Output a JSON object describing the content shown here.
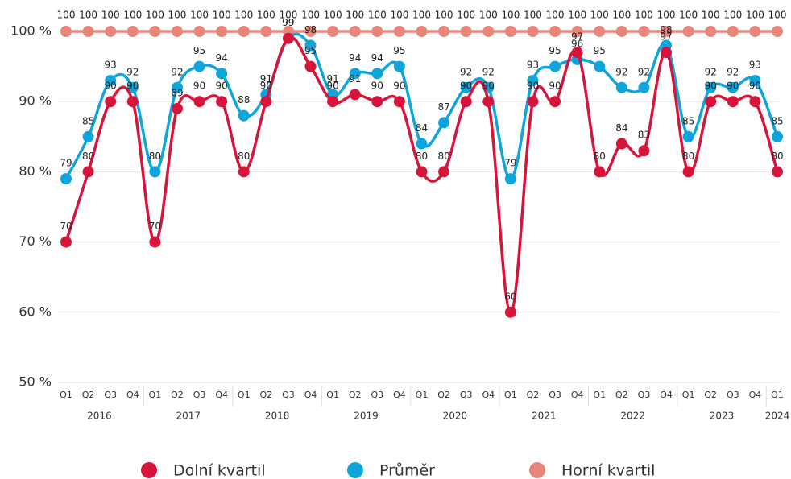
{
  "chart_data": {
    "type": "line",
    "categories": [
      "Q1",
      "Q2",
      "Q3",
      "Q4",
      "Q1",
      "Q2",
      "Q3",
      "Q4",
      "Q1",
      "Q2",
      "Q3",
      "Q4",
      "Q1",
      "Q2",
      "Q3",
      "Q4",
      "Q1",
      "Q2",
      "Q3",
      "Q4",
      "Q1",
      "Q2",
      "Q3",
      "Q4",
      "Q1",
      "Q2",
      "Q3",
      "Q4",
      "Q1",
      "Q2",
      "Q3",
      "Q4",
      "Q1"
    ],
    "years": [
      "2016",
      "2017",
      "2018",
      "2019",
      "2020",
      "2021",
      "2022",
      "2023",
      "2024"
    ],
    "series": [
      {
        "name": "Dolní kvartil",
        "color": "#d7153a",
        "values": [
          70,
          80,
          90,
          90,
          70,
          89,
          90,
          90,
          80,
          90,
          99,
          95,
          90,
          91,
          90,
          90,
          80,
          80,
          90,
          90,
          60,
          90,
          90,
          97,
          80,
          84,
          83,
          97,
          80,
          90,
          90,
          90,
          80
        ]
      },
      {
        "name": "Průměr",
        "color": "#0ea5dc",
        "values": [
          79,
          85,
          93,
          92,
          80,
          92,
          95,
          94,
          88,
          91,
          99,
          98,
          91,
          94,
          94,
          95,
          84,
          87,
          92,
          92,
          79,
          93,
          95,
          96,
          95,
          92,
          92,
          98,
          85,
          92,
          92,
          93,
          85
        ]
      },
      {
        "name": "Horní kvartil",
        "color": "#e8867a",
        "values": [
          100,
          100,
          100,
          100,
          100,
          100,
          100,
          100,
          100,
          100,
          100,
          100,
          100,
          100,
          100,
          100,
          100,
          100,
          100,
          100,
          100,
          100,
          100,
          100,
          100,
          100,
          100,
          100,
          100,
          100,
          100,
          100,
          100
        ]
      }
    ],
    "ylim": [
      50,
      100
    ],
    "yticks": [
      {
        "value": 50,
        "label": "50 %"
      },
      {
        "value": 60,
        "label": "60 %"
      },
      {
        "value": 70,
        "label": "70 %"
      },
      {
        "value": 80,
        "label": "80 %"
      },
      {
        "value": 90,
        "label": "90 %"
      },
      {
        "value": 100,
        "label": "100 %"
      }
    ],
    "grid": true,
    "legend": "bottom"
  }
}
